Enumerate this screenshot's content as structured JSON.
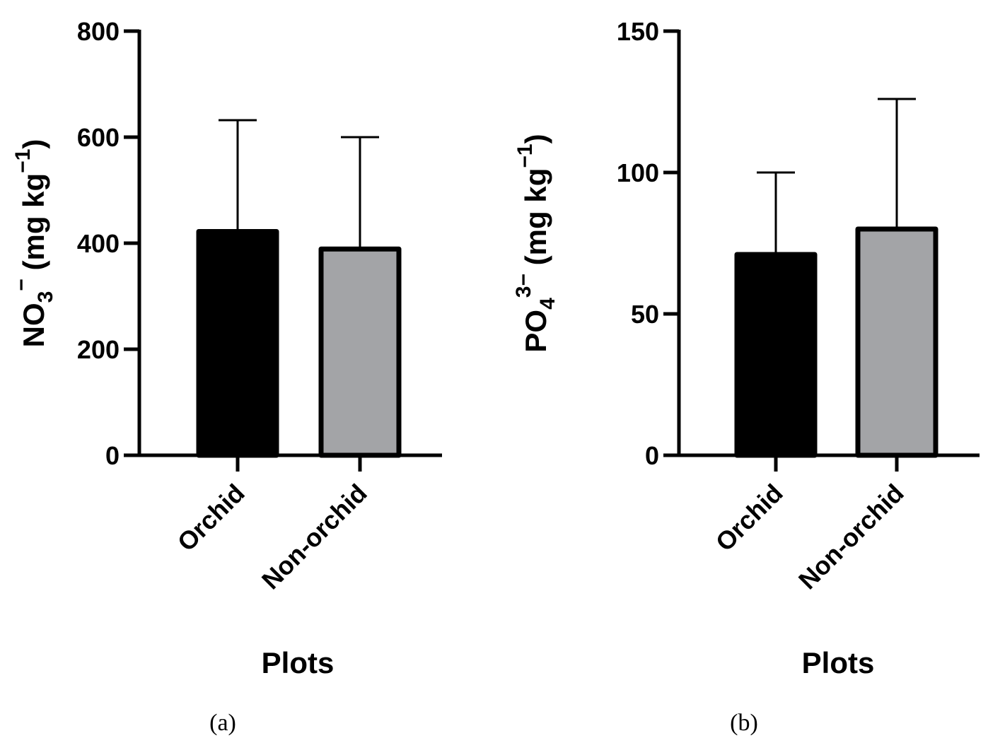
{
  "chart_data": [
    {
      "type": "bar",
      "panel_label": "(a)",
      "categories": [
        "Orchid",
        "Non-orchid"
      ],
      "values": [
        422,
        389
      ],
      "error_upper": [
        632,
        600
      ],
      "colors": [
        "#000000",
        "#a3a4a7"
      ],
      "ylim": [
        0,
        800
      ],
      "yticks": [
        0,
        200,
        400,
        600,
        800
      ],
      "ylabel": {
        "main": "NO",
        "sub": "3",
        "sup": "−",
        "units_prefix": " (mg kg",
        "units_sup": "−1",
        "units_suffix": ")"
      },
      "xlabel": "Plots"
    },
    {
      "type": "bar",
      "panel_label": "(b)",
      "categories": [
        "Orchid",
        "Non-orchid"
      ],
      "values": [
        71,
        80
      ],
      "error_upper": [
        100,
        126
      ],
      "colors": [
        "#000000",
        "#a3a4a7"
      ],
      "ylim": [
        0,
        150
      ],
      "yticks": [
        0,
        50,
        100,
        150
      ],
      "ylabel": {
        "main": "PO",
        "sub": "4",
        "sup": "3−",
        "units_prefix": " (mg kg",
        "units_sup": "−1",
        "units_suffix": ")"
      },
      "xlabel": "Plots"
    }
  ]
}
